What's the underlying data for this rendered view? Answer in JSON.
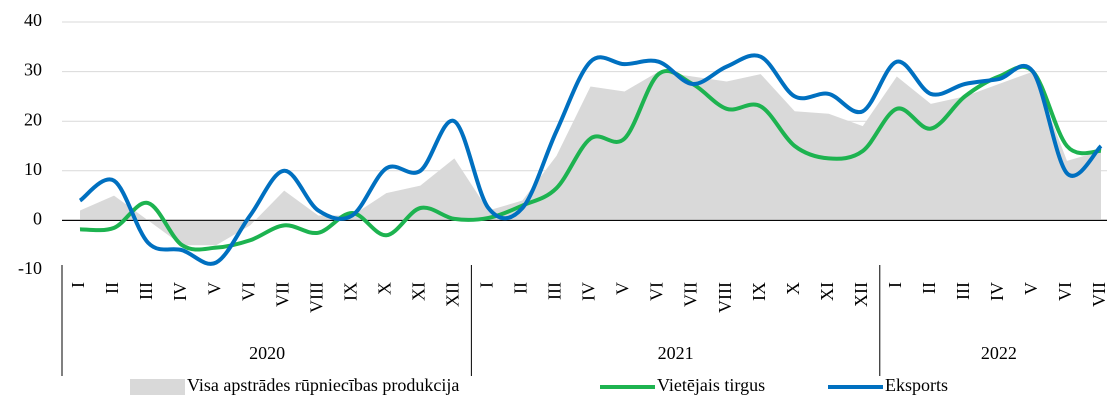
{
  "chart_data": {
    "type": "line",
    "category_groups": [
      {
        "label": "2020",
        "categories": [
          "I",
          "II",
          "III",
          "IV",
          "V",
          "VI",
          "VII",
          "VIII",
          "IX",
          "X",
          "XI",
          "XII"
        ]
      },
      {
        "label": "2021",
        "categories": [
          "I",
          "II",
          "III",
          "IV",
          "V",
          "VI",
          "VII",
          "VIII",
          "IX",
          "X",
          "XI",
          "XII"
        ]
      },
      {
        "label": "2022",
        "categories": [
          "I",
          "II",
          "III",
          "IV",
          "V",
          "VI",
          "VII"
        ]
      }
    ],
    "series": [
      {
        "name": "Visa apstrādes rūpniecības produkcija",
        "type": "area",
        "color": "#d9d9d9",
        "values": [
          2,
          5,
          0,
          -5,
          -5,
          -1,
          6,
          1,
          1,
          5.5,
          7,
          12.5,
          2,
          4,
          13,
          27,
          26,
          30,
          29,
          28,
          29.5,
          22,
          21.5,
          19,
          29,
          23.5,
          25,
          27.5,
          30,
          12,
          14
        ]
      },
      {
        "name": "Vietējais tirgus",
        "type": "line",
        "color": "#1db350",
        "values": [
          -1.8,
          -1.5,
          3.5,
          -5,
          -5.5,
          -4,
          -1,
          -2.5,
          1.5,
          -3,
          2.5,
          0.3,
          0.5,
          3,
          6.5,
          16.5,
          16.5,
          29.5,
          27.5,
          22.5,
          23,
          15,
          12.5,
          14,
          22.5,
          18.5,
          25,
          29,
          30,
          15,
          14
        ]
      },
      {
        "name": "Eksports",
        "type": "line",
        "color": "#0070c0",
        "values": [
          4,
          8,
          -4.5,
          -6,
          -8.5,
          1,
          10,
          2,
          1,
          10.5,
          10,
          20,
          2.5,
          2.5,
          18,
          32,
          31.5,
          32,
          27.5,
          31,
          33,
          25,
          25.5,
          22,
          32,
          25.5,
          27.5,
          28.5,
          30,
          9.5,
          15
        ]
      }
    ],
    "ylim": [
      -10,
      40
    ],
    "yticks": [
      -10,
      0,
      10,
      20,
      30,
      40
    ],
    "grid": true,
    "legend": "bottom"
  }
}
